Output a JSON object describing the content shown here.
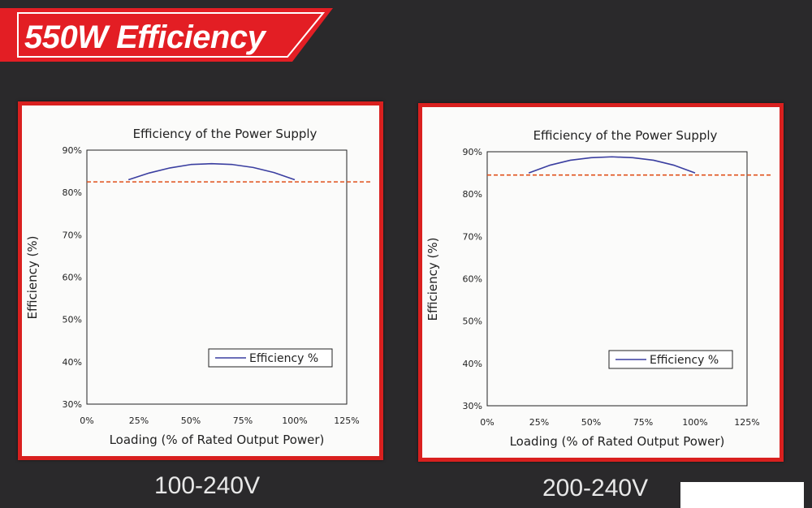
{
  "page": {
    "title": "550W Efficiency",
    "colors": {
      "banner": "#e31e24",
      "frame": "#d9201f",
      "curve": "#3a3ea0",
      "reference_line": "#e0501a"
    }
  },
  "chart_data": [
    {
      "type": "line",
      "caption": "100-240V",
      "title": "Efficiency of the Power Supply",
      "xlabel": "Loading (% of Rated Output Power)",
      "ylabel": "Efficiency (%)",
      "xlim": [
        0,
        125
      ],
      "ylim": [
        30,
        90
      ],
      "x_ticks": [
        "0%",
        "25%",
        "50%",
        "75%",
        "100%",
        "125%"
      ],
      "y_ticks": [
        "30%",
        "40%",
        "50%",
        "60%",
        "70%",
        "80%",
        "90%"
      ],
      "grid": false,
      "legend": {
        "position": "bottom-right",
        "label": "Efficiency %"
      },
      "series": [
        {
          "name": "Efficiency %",
          "x": [
            20,
            30,
            40,
            50,
            60,
            70,
            80,
            90,
            100
          ],
          "y": [
            83.0,
            84.6,
            85.8,
            86.6,
            86.8,
            86.6,
            85.9,
            84.7,
            83.0
          ]
        }
      ],
      "reference_line": {
        "y": 82.5,
        "style": "dashed"
      }
    },
    {
      "type": "line",
      "caption": "200-240V",
      "title": "Efficiency of the Power Supply",
      "xlabel": "Loading (% of Rated Output Power)",
      "ylabel": "Efficiency (%)",
      "xlim": [
        0,
        125
      ],
      "ylim": [
        30,
        90
      ],
      "x_ticks": [
        "0%",
        "25%",
        "50%",
        "75%",
        "100%",
        "125%"
      ],
      "y_ticks": [
        "30%",
        "40%",
        "50%",
        "60%",
        "70%",
        "80%",
        "90%"
      ],
      "grid": false,
      "legend": {
        "position": "bottom-right",
        "label": "Efficiency %"
      },
      "series": [
        {
          "name": "Efficiency %",
          "x": [
            20,
            30,
            40,
            50,
            60,
            70,
            80,
            90,
            100
          ],
          "y": [
            85.0,
            86.8,
            88.0,
            88.6,
            88.8,
            88.6,
            88.0,
            86.8,
            85.0
          ]
        }
      ],
      "reference_line": {
        "y": 84.5,
        "style": "dashed"
      }
    }
  ]
}
